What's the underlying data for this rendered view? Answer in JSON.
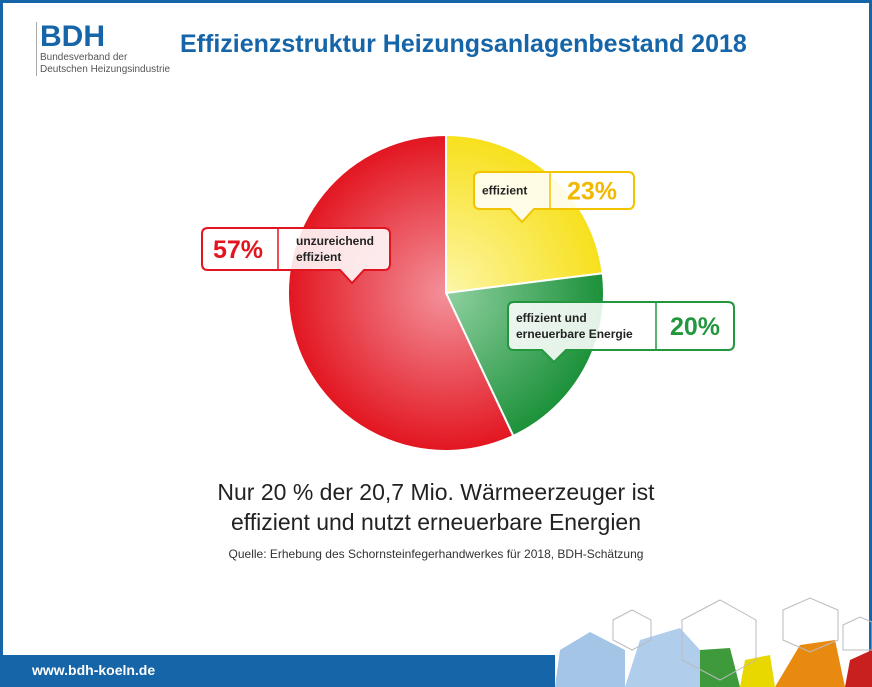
{
  "logo": {
    "name": "BDH",
    "line1": "Bundesverband der",
    "line2": "Deutschen Heizungsindustrie"
  },
  "title": "Effizienzstruktur Heizungsanlagenbestand 2018",
  "chart_data": {
    "type": "pie",
    "title": "Effizienzstruktur Heizungsanlagenbestand 2018",
    "slices": [
      {
        "label": "effizient",
        "value": 23,
        "display": "23%",
        "color": "#f7e01a",
        "border": "#f2c400"
      },
      {
        "label": "effizient und erneuerbare Energie",
        "value": 20,
        "display": "20%",
        "color": "#23973e",
        "border": "#23973e"
      },
      {
        "label": "unzureichend effizient",
        "value": 57,
        "display": "57%",
        "color": "#e2141f",
        "border": "#e2141f"
      }
    ]
  },
  "caption": {
    "line1": "Nur 20 % der 20,7 Mio. Wärmeerzeuger ist",
    "line2": "effizient und nutzt erneuerbare Energien"
  },
  "source": "Quelle: Erhebung des Schornsteinfegerhandwerkes für 2018, BDH-Schätzung",
  "footer": {
    "url": "www.bdh-koeln.de"
  }
}
